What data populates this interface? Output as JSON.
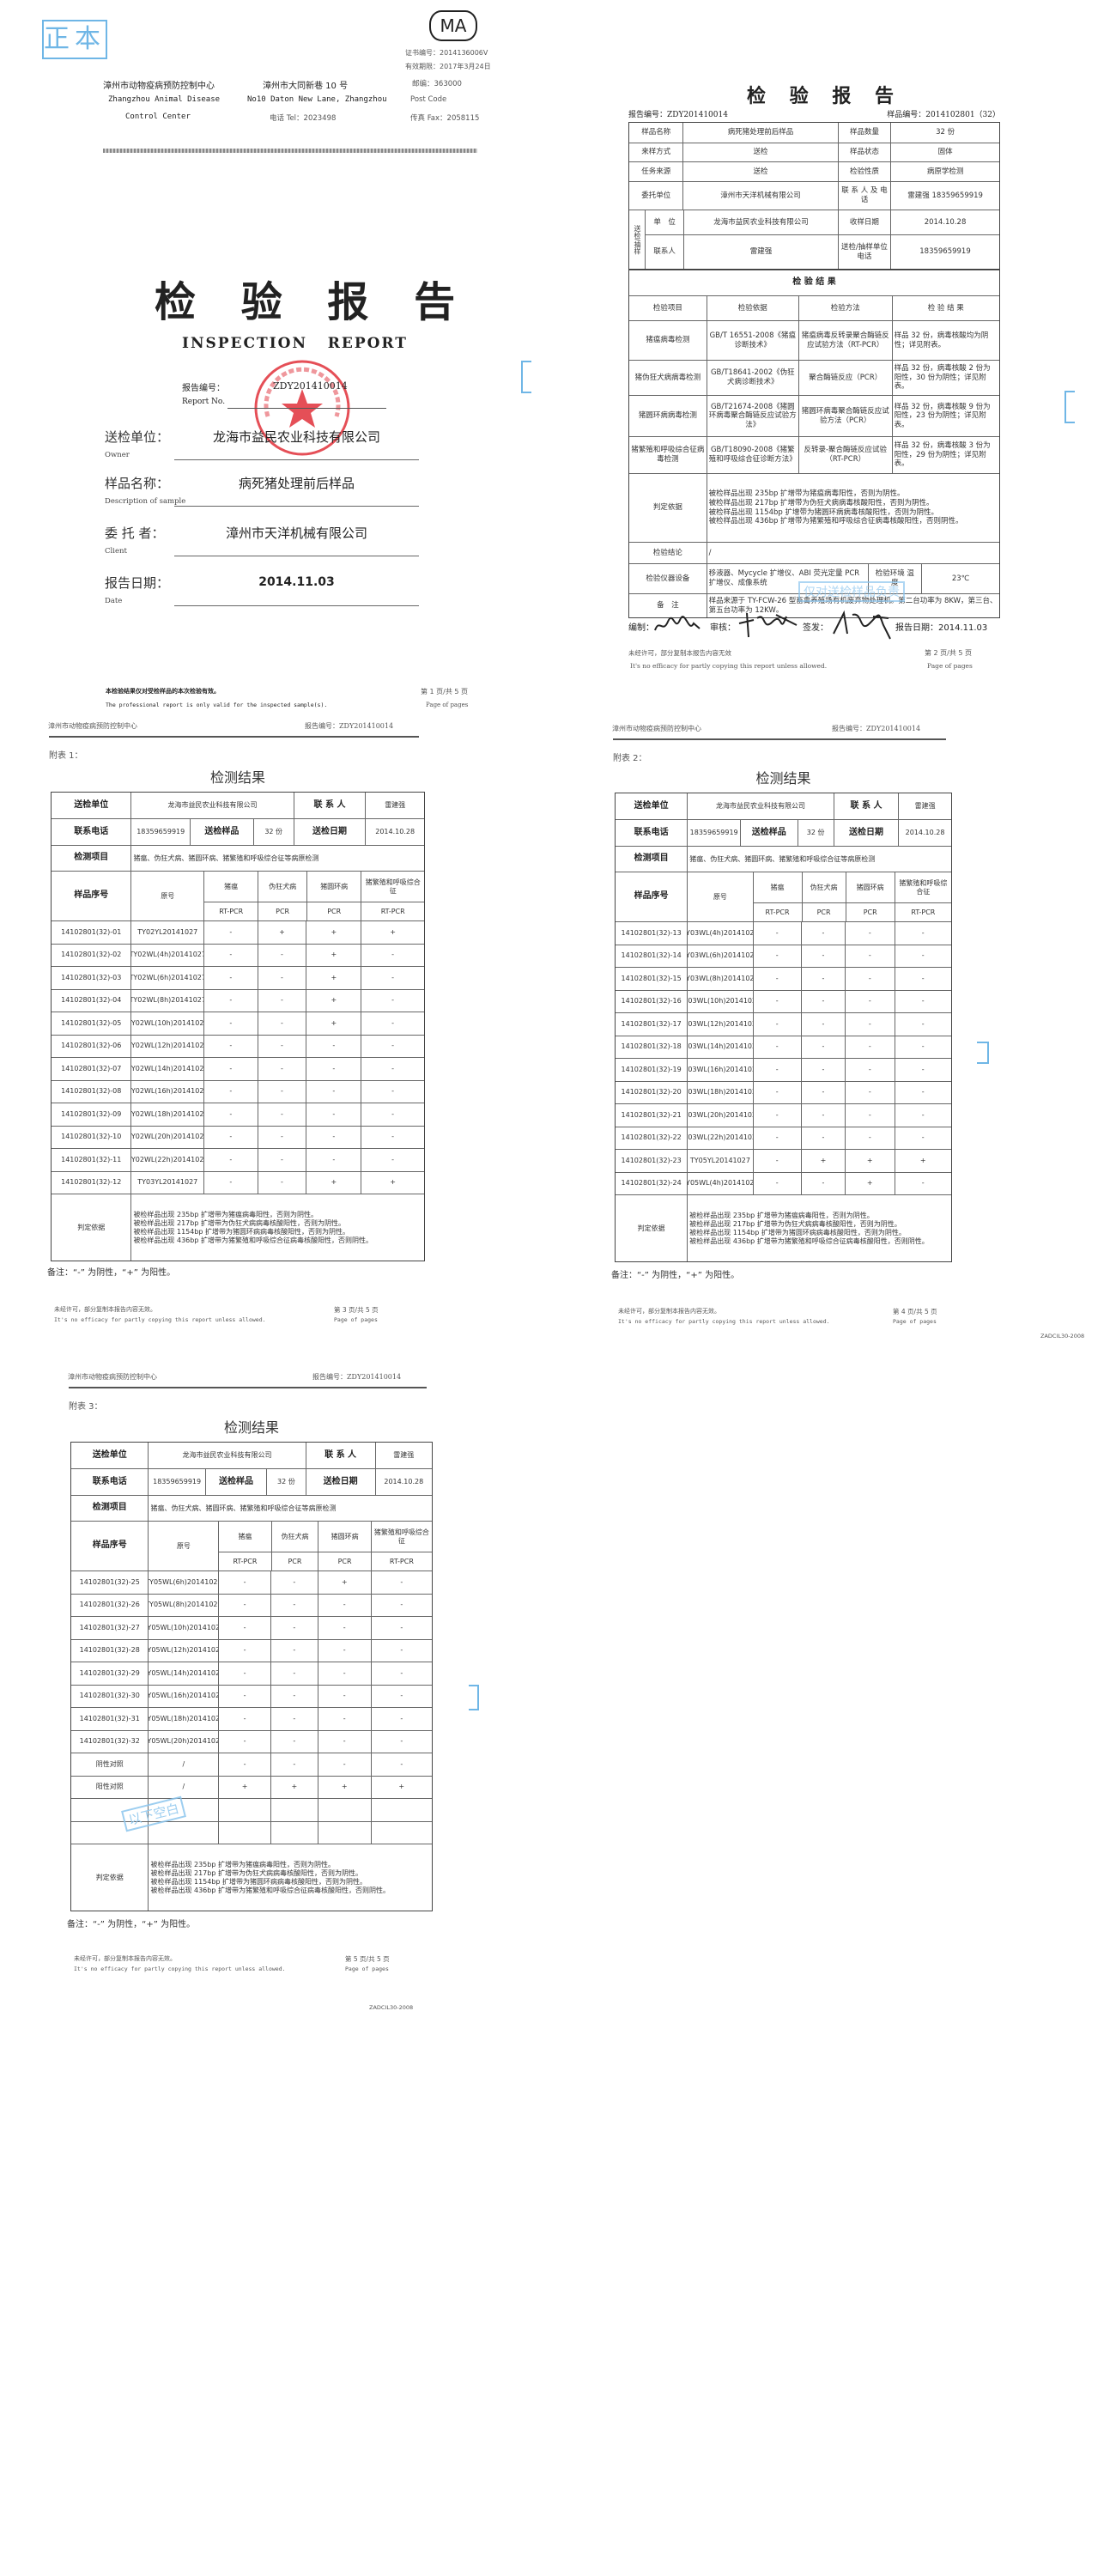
{
  "page1": {
    "original_stamp": "正本",
    "ma_logo": "MA",
    "cert_no": "证书编号：2014136006V",
    "valid_until": "有效期限：2017年3月24日",
    "org_zh": "漳州市动物疫病预防控制中心",
    "org_en_1": "Zhangzhou Animal Disease",
    "org_en_2": "Control Center",
    "address_zh": "漳州市大同新巷 10 号",
    "address_en": "No10 Daton New Lane, Zhangzhou",
    "tel": "电话 Tel：2023498",
    "postcode": "邮编：363000",
    "postcode_en": "Post Code",
    "fax": "传真 Fax：2058115",
    "title": "检 验 报 告",
    "title_en": "INSPECTION   REPORT",
    "report_no_label": "报告编号：",
    "report_no_en": "Report No.",
    "report_no": "ZDY201410014",
    "seal_text": "漳州市动物疫病预防控制中心",
    "fields": [
      {
        "label": "送检单位：",
        "en": "Owner",
        "value": "龙海市益民农业科技有限公司"
      },
      {
        "label": "样品名称：",
        "en": "Description of sample",
        "value": "病死猪处理前后样品"
      },
      {
        "label": "委 托 者：",
        "en": "Client",
        "value": "漳州市天洋机械有限公司"
      },
      {
        "label": "报告日期：",
        "en": "Date",
        "value": "2014.11.03"
      }
    ],
    "footer_zh": "本检验结果仅对受检样品的本次检验有效。",
    "footer_en": "The professional report is only valid for the inspected sample(s).",
    "page": "第 1 页/共 5 页",
    "page_en": "Page of pages"
  },
  "page2": {
    "title": "检 验 报 告",
    "report_no": "报告编号：ZDY201410014",
    "sample_no": "样品编号：2014102801（32）",
    "info": [
      [
        "样品名称",
        "病死猪处理前后样品",
        "样品数量",
        "32 份"
      ],
      [
        "来样方式",
        "送检",
        "样品状态",
        "固体"
      ],
      [
        "任务来源",
        "送检",
        "检验性质",
        "病原学检测"
      ],
      [
        "委托单位",
        "漳州市天洋机械有限公司",
        "联 系 人 及 电 话",
        "雷建强 18359659919"
      ]
    ],
    "sender_group": "送检/抽样",
    "sender": [
      [
        "单　位",
        "龙海市益民农业科技有限公司",
        "收样日期",
        "2014.10.28"
      ],
      [
        "联系人",
        "雷建强",
        "送检/抽样单位电话",
        "18359659919"
      ]
    ],
    "results_title": "检 验 结 果",
    "results_headers": [
      "检验项目",
      "检验依据",
      "检验方法",
      "检 验 结 果"
    ],
    "results": [
      [
        "猪瘟病毒检测",
        "GB/T 16551-2008《猪瘟诊断技术》",
        "猪瘟病毒反转录聚合酶链反应试验方法（RT-PCR）",
        "样品 32 份，病毒核酸均为阴性；详见附表。"
      ],
      [
        "猪伪狂犬病病毒检测",
        "GB/T18641-2002《伪狂犬病诊断技术》",
        "聚合酶链反应（PCR）",
        "样品 32 份，病毒核酸 2 份为阳性，30 份为阴性；详见附表。"
      ],
      [
        "猪圆环病病毒检测",
        "GB/T21674-2008《猪圆环病毒聚合酶链反应试验方法》",
        "猪圆环病毒聚合酶链反应试验方法（PCR）",
        "样品 32 份，病毒核酸 9 份为阳性，23 份为阴性；详见附表。"
      ],
      [
        "猪繁殖和呼吸综合征病毒检测",
        "GB/T18090-2008《猪繁殖和呼吸综合征诊断方法》",
        "反转录-聚合酶链反应试验（RT-PCR）",
        "样品 32 份，病毒核酸 3 份为阳性，29 份为阴性；详见附表。"
      ]
    ],
    "criteria_label": "判定依据",
    "criteria": [
      "被检样品出现 235bp 扩增带为猪瘟病毒阳性，否则为阴性。",
      "被检样品出现 217bp 扩增带为伪狂犬病病毒核酸阳性，否则为阴性。",
      "被检样品出现 1154bp 扩增带为猪圆环病病毒核酸阳性，否则为阴性。",
      "被检样品出现 436bp 扩增带为猪繁殖和呼吸综合征病毒核酸阳性，否则阴性。"
    ],
    "conclusion_label": "检验结论",
    "conclusion": "/",
    "equipment_label": "检验仪器设备",
    "equipment": "移液器、Mycycle 扩增仪、ABI 荧光定量 PCR 扩增仪、成像系统",
    "env_label": "检验环境 温　度",
    "env": "23℃",
    "remarks_label": "备　注",
    "remarks": "样品来源于 TY-FCW-26 型畜禽养殖场有机废弃物处理机。第二台功率为 8KW，第三台、第五台功率为 12KW。",
    "stamp": "仅对送检样品负责",
    "sign_compiled": "编制：",
    "sign_reviewed": "审核：",
    "sign_issued": "签发：",
    "report_date": "报告日期：2014.11.03",
    "footer_zh": "未经许可，部分复制本报告内容无效",
    "footer_en": "It's no efficacy for partly copying this report unless allowed.",
    "page": "第 2 页/共 5 页",
    "page_en": "Page of pages"
  },
  "appendix_common": {
    "header_org": "漳州市动物疫病预防控制中心",
    "header_report": "报告编号：ZDY201410014",
    "title": "检测结果",
    "labels": {
      "sender": "送检单位",
      "contact": "联 系 人",
      "phone": "联系电话",
      "samples": "送检样品",
      "date": "送检日期",
      "items": "检测项目",
      "sample_no": "样品序号",
      "orig": "原号"
    },
    "sender": "龙海市益民农业科技有限公司",
    "contact": "雷建强",
    "phone": "18359659919",
    "samples": "32 份",
    "date": "2014.10.28",
    "items": "猪瘟、伪狂犬病、猪圆环病、猪繁殖和呼吸综合征等病原检测",
    "diseases": [
      "猪瘟",
      "伪狂犬病",
      "猪圆环病",
      "猪繁殖和呼吸综合征"
    ],
    "methods": [
      "RT-PCR",
      "PCR",
      "PCR",
      "RT-PCR"
    ],
    "criteria_label": "判定依据",
    "criteria": [
      "被检样品出现 235bp 扩增带为猪瘟病毒阳性，否则为阴性。",
      "被检样品出现 217bp 扩增带为伪狂犬病病毒核酸阳性，否则为阴性。",
      "被检样品出现 1154bp 扩增带为猪圆环病病毒核酸阳性，否则为阴性。",
      "被检样品出现 436bp 扩增带为猪繁殖和呼吸综合征病毒核酸阳性，否则阴性。"
    ],
    "note": "备注：“-” 为阴性，“+” 为阳性。",
    "footer_zh": "未经许可，部分复制本报告内容无效。",
    "footer_en": "It's no efficacy for partly copying this report unless allowed.",
    "page_en": "Page of pages",
    "form_code": "ZADCIL30-2008"
  },
  "appendices": [
    {
      "label": "附表 1：",
      "page": "第 3 页/共 5 页",
      "rows": [
        [
          "14102801(32)-01",
          "TY02YL20141027",
          "-",
          "+",
          "+",
          "+"
        ],
        [
          "14102801(32)-02",
          "TY02WL(4h)20141027",
          "-",
          "-",
          "+",
          "-"
        ],
        [
          "14102801(32)-03",
          "TY02WL(6h)20141027",
          "-",
          "-",
          "+",
          "-"
        ],
        [
          "14102801(32)-04",
          "TY02WL(8h)20141027",
          "-",
          "-",
          "+",
          "-"
        ],
        [
          "14102801(32)-05",
          "TY02WL(10h)20141027",
          "-",
          "-",
          "+",
          "-"
        ],
        [
          "14102801(32)-06",
          "TY02WL(12h)20141027",
          "-",
          "-",
          "-",
          "-"
        ],
        [
          "14102801(32)-07",
          "TY02WL(14h)20141028",
          "-",
          "-",
          "-",
          "-"
        ],
        [
          "14102801(32)-08",
          "TY02WL(16h)20141028",
          "-",
          "-",
          "-",
          "-"
        ],
        [
          "14102801(32)-09",
          "TY02WL(18h)20141028",
          "-",
          "-",
          "-",
          "-"
        ],
        [
          "14102801(32)-10",
          "TY02WL(20h)20141028",
          "-",
          "-",
          "-",
          "-"
        ],
        [
          "14102801(32)-11",
          "TY02WL(22h)20141028",
          "-",
          "-",
          "-",
          "-"
        ],
        [
          "14102801(32)-12",
          "TY03YL20141027",
          "-",
          "-",
          "+",
          "+"
        ]
      ]
    },
    {
      "label": "附表 2：",
      "page": "第 4 页/共 5 页",
      "rows": [
        [
          "14102801(32)-13",
          "TY03WL(4h)20141027",
          "-",
          "-",
          "-",
          "-"
        ],
        [
          "14102801(32)-14",
          "TY03WL(6h)20141027",
          "-",
          "-",
          "-",
          "-"
        ],
        [
          "14102801(32)-15",
          "TY03WL(8h)20141027",
          "-",
          "-",
          "-",
          "-"
        ],
        [
          "14102801(32)-16",
          "TY03WL(10h)20141027",
          "-",
          "-",
          "-",
          "-"
        ],
        [
          "14102801(32)-17",
          "TY03WL(12h)20141027",
          "-",
          "-",
          "-",
          "-"
        ],
        [
          "14102801(32)-18",
          "TY03WL(14h)20141028",
          "-",
          "-",
          "-",
          "-"
        ],
        [
          "14102801(32)-19",
          "TY03WL(16h)20141028",
          "-",
          "-",
          "-",
          "-"
        ],
        [
          "14102801(32)-20",
          "TY03WL(18h)20141028",
          "-",
          "-",
          "-",
          "-"
        ],
        [
          "14102801(32)-21",
          "TY03WL(20h)20141028",
          "-",
          "-",
          "-",
          "-"
        ],
        [
          "14102801(32)-22",
          "TY03WL(22h)20141028",
          "-",
          "-",
          "-",
          "-"
        ],
        [
          "14102801(32)-23",
          "TY05YL20141027",
          "-",
          "+",
          "+",
          "+"
        ],
        [
          "14102801(32)-24",
          "TY05WL(4h)20141027",
          "-",
          "-",
          "+",
          "-"
        ]
      ]
    },
    {
      "label": "附表 3：",
      "page": "第 5 页/共 5 页",
      "stamp": "以下空白",
      "rows": [
        [
          "14102801(32)-25",
          "TY05WL(6h)20141027",
          "-",
          "-",
          "+",
          "-"
        ],
        [
          "14102801(32)-26",
          "TY05WL(8h)20141027",
          "-",
          "-",
          "-",
          "-"
        ],
        [
          "14102801(32)-27",
          "TY05WL(10h)20141027",
          "-",
          "-",
          "-",
          "-"
        ],
        [
          "14102801(32)-28",
          "TY05WL(12h)20141027",
          "-",
          "-",
          "-",
          "-"
        ],
        [
          "14102801(32)-29",
          "TY05WL(14h)20141028",
          "-",
          "-",
          "-",
          "-"
        ],
        [
          "14102801(32)-30",
          "TY05WL(16h)20141028",
          "-",
          "-",
          "-",
          "-"
        ],
        [
          "14102801(32)-31",
          "TY05WL(18h)20141028",
          "-",
          "-",
          "-",
          "-"
        ],
        [
          "14102801(32)-32",
          "TY05WL(20h)20141028",
          "-",
          "-",
          "-",
          "-"
        ],
        [
          "阴性对照",
          "/",
          "-",
          "-",
          "-",
          "-"
        ],
        [
          "阳性对照",
          "/",
          "+",
          "+",
          "+",
          "+"
        ],
        [
          "",
          "",
          "",
          "",
          "",
          ""
        ],
        [
          "",
          "",
          "",
          "",
          "",
          ""
        ]
      ]
    }
  ],
  "colors": {
    "seal_red": "#e0303a",
    "stamp_blue": "#6fb6e6"
  }
}
